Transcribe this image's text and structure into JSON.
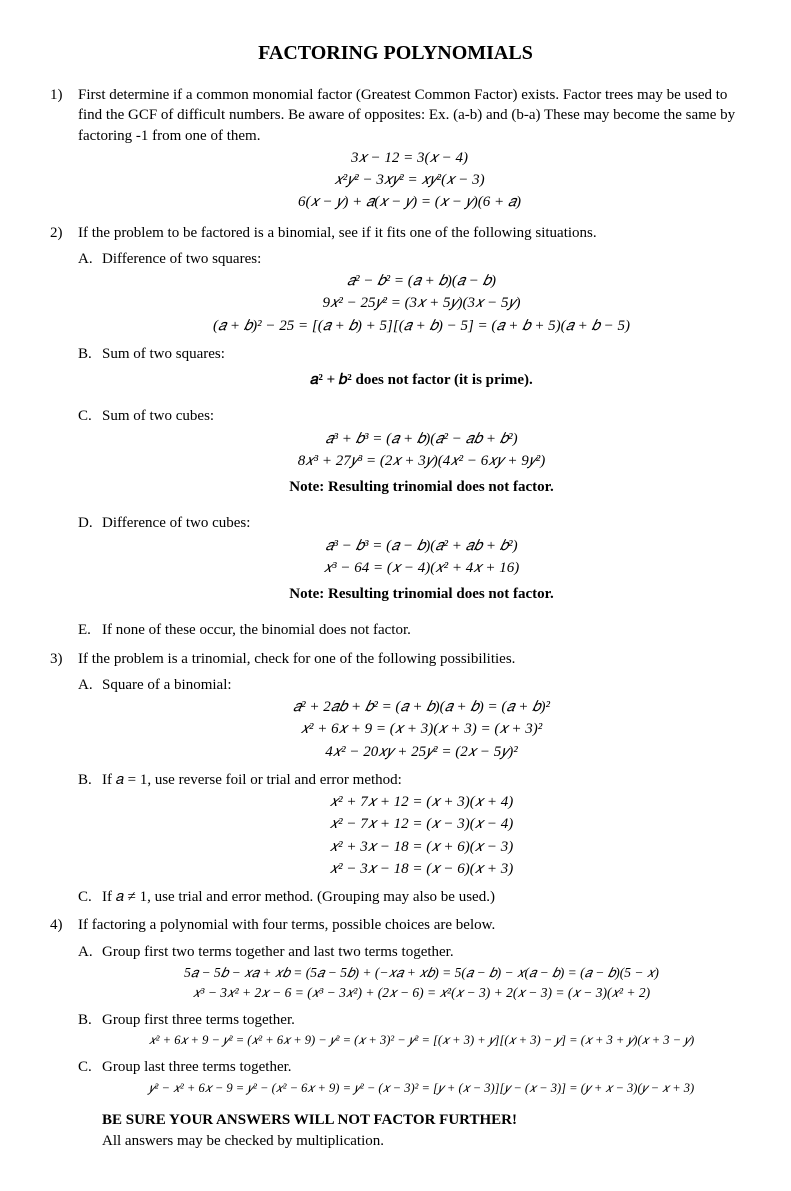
{
  "title": "FACTORING POLYNOMIALS",
  "s1": {
    "num": "1)",
    "text": "First determine if a common monomial factor (Greatest Common Factor) exists. Factor trees may be used to find the GCF of difficult numbers. Be aware of opposites: Ex.  (a-b) and (b-a)   These may become the same by factoring  -1 from one of them.",
    "eq1": "3𝑥 − 12 = 3(𝑥 − 4)",
    "eq2": "𝑥²𝑦² − 3𝑥𝑦² = 𝑥𝑦²(𝑥 − 3)",
    "eq3": "6(𝑥 − 𝑦) + 𝑎(𝑥 − 𝑦) = (𝑥 − 𝑦)(6 + 𝑎)"
  },
  "s2": {
    "num": "2)",
    "text": "If the problem to be factored is a binomial, see if it fits one of the following situations.",
    "A": {
      "num": "A.",
      "label": "Difference of two squares:",
      "eq1": "𝑎² − 𝑏² = (𝑎 + 𝑏)(𝑎 − 𝑏)",
      "eq2": "9𝑥² − 25𝑦² = (3𝑥 + 5𝑦)(3𝑥 − 5𝑦)",
      "eq3": "(𝑎 + 𝑏)² − 25 = [(𝑎 + 𝑏) + 5][(𝑎 + 𝑏) − 5] = (𝑎 + 𝑏 + 5)(𝑎 + 𝑏 − 5)"
    },
    "B": {
      "num": "B.",
      "label": "Sum of two squares:",
      "note": "𝑎² + 𝑏² does not factor (it is prime)."
    },
    "C": {
      "num": "C.",
      "label": "Sum of two cubes:",
      "eq1": "𝑎³ + 𝑏³ = (𝑎 + 𝑏)(𝑎² − 𝑎𝑏 + 𝑏²)",
      "eq2": "8𝑥³ + 27𝑦³ = (2𝑥 + 3𝑦)(4𝑥² − 6𝑥𝑦 + 9𝑦²)",
      "note": "Note: Resulting trinomial does not factor."
    },
    "D": {
      "num": "D.",
      "label": "Difference of two cubes:",
      "eq1": "𝑎³ − 𝑏³ = (𝑎 − 𝑏)(𝑎² + 𝑎𝑏 + 𝑏²)",
      "eq2": "𝑥³ − 64 = (𝑥 − 4)(𝑥² + 4𝑥 + 16)",
      "note": "Note: Resulting trinomial does not factor."
    },
    "E": {
      "num": "E.",
      "label": "If none of these occur, the binomial does not factor."
    }
  },
  "s3": {
    "num": "3)",
    "text": "If the problem is a trinomial, check for one of the following possibilities.",
    "A": {
      "num": "A.",
      "label": "Square of a binomial:",
      "eq1": "𝑎² + 2𝑎𝑏 + 𝑏² = (𝑎 + 𝑏)(𝑎 + 𝑏) = (𝑎 + 𝑏)²",
      "eq2": "𝑥² + 6𝑥 + 9 = (𝑥 + 3)(𝑥 + 3) = (𝑥 + 3)²",
      "eq3": "4𝑥² − 20𝑥𝑦 + 25𝑦² = (2𝑥 − 5𝑦)²"
    },
    "B": {
      "num": "B.",
      "label": "If 𝑎  = 1, use reverse foil or trial and error method:",
      "eq1": "𝑥² + 7𝑥 + 12 = (𝑥 + 3)(𝑥 + 4)",
      "eq2": "𝑥² − 7𝑥 + 12 = (𝑥 − 3)(𝑥 − 4)",
      "eq3": "𝑥² + 3𝑥 − 18 = (𝑥 + 6)(𝑥 − 3)",
      "eq4": "𝑥² − 3𝑥 − 18 = (𝑥 − 6)(𝑥 + 3)"
    },
    "C": {
      "num": "C.",
      "label": "If 𝑎 ≠ 1, use trial and error method. (Grouping may also be used.)"
    }
  },
  "s4": {
    "num": "4)",
    "text": "If factoring a polynomial with four terms, possible choices are below.",
    "A": {
      "num": "A.",
      "label": "Group first two terms together and last two terms together.",
      "eq1": "5𝑎 − 5𝑏 − 𝑥𝑎 + 𝑥𝑏 = (5𝑎 − 5𝑏) + (−𝑥𝑎 + 𝑥𝑏) = 5(𝑎 − 𝑏) − 𝑥(𝑎 − 𝑏) = (𝑎 − 𝑏)(5 − 𝑥)",
      "eq2": "𝑥³ − 3𝑥² + 2𝑥 − 6 = (𝑥³ − 3𝑥²) + (2𝑥 − 6) = 𝑥²(𝑥 − 3) + 2(𝑥 − 3) = (𝑥 − 3)(𝑥² + 2)"
    },
    "B": {
      "num": "B.",
      "label": "Group first three terms together.",
      "eq1": "𝑥² + 6𝑥 + 9 − 𝑦² = (𝑥² + 6𝑥 + 9) − 𝑦² = (𝑥 + 3)² − 𝑦² = [(𝑥 + 3) + 𝑦][(𝑥 + 3) − 𝑦] = (𝑥 + 3 + 𝑦)(𝑥 + 3 − 𝑦)"
    },
    "C": {
      "num": "C.",
      "label": "Group last three terms together.",
      "eq1": "𝑦² − 𝑥² + 6𝑥 − 9 = 𝑦² − (𝑥² − 6𝑥 + 9) = 𝑦² − (𝑥 − 3)² = [𝑦 + (𝑥 − 3)][𝑦 − (𝑥 − 3)] = (𝑦 + 𝑥 − 3)(𝑦 − 𝑥 + 3)"
    }
  },
  "footer": {
    "line1": "BE SURE YOUR ANSWERS WILL NOT FACTOR FURTHER!",
    "line2": "All answers may be checked by multiplication."
  }
}
